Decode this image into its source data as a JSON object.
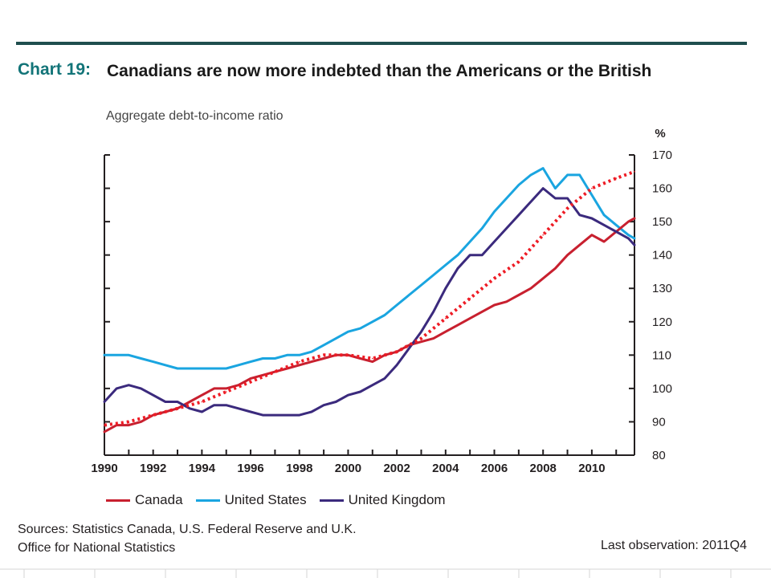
{
  "header": {
    "chart_number": "Chart 19:",
    "title": "Canadians are now more indebted than the Americans or the British",
    "subtitle": "Aggregate debt-to-income ratio"
  },
  "footer": {
    "sources": "Sources: Statistics Canada, U.S. Federal Reserve and U.K. Office for National Statistics",
    "last_observation": "Last observation: 2011Q4"
  },
  "colors": {
    "canada": "#c8202f",
    "united_states": "#1aa5e0",
    "united_kingdom": "#3b2a7d",
    "trend": "#ee1c25",
    "accent": "#127478"
  },
  "chart_data": {
    "type": "line",
    "title": "Canadians are now more indebted than the Americans or the British",
    "subtitle": "Aggregate debt-to-income ratio",
    "ylabel": "%",
    "xlabel": "",
    "xlim": [
      1990,
      2011.75
    ],
    "ylim": [
      80,
      170
    ],
    "yticks": [
      80,
      90,
      100,
      110,
      120,
      130,
      140,
      150,
      160,
      170
    ],
    "xticks": [
      1990,
      1992,
      1994,
      1996,
      1998,
      2000,
      2002,
      2004,
      2006,
      2008,
      2010
    ],
    "legend": [
      "Canada",
      "United States",
      "United Kingdom"
    ],
    "series": [
      {
        "name": "Canada",
        "x": [
          1990,
          1990.5,
          1991,
          1991.5,
          1992,
          1992.5,
          1993,
          1993.5,
          1994,
          1994.5,
          1995,
          1995.5,
          1996,
          1996.5,
          1997,
          1997.5,
          1998,
          1998.5,
          1999,
          1999.5,
          2000,
          2000.5,
          2001,
          2001.5,
          2002,
          2002.5,
          2003,
          2003.5,
          2004,
          2004.5,
          2005,
          2005.5,
          2006,
          2006.5,
          2007,
          2007.5,
          2008,
          2008.5,
          2009,
          2009.5,
          2010,
          2010.5,
          2011,
          2011.5,
          2011.75
        ],
        "values": [
          87,
          89,
          89,
          90,
          92,
          93,
          94,
          96,
          98,
          100,
          100,
          101,
          103,
          104,
          105,
          106,
          107,
          108,
          109,
          110,
          110,
          109,
          108,
          110,
          111,
          113,
          114,
          115,
          117,
          119,
          121,
          123,
          125,
          126,
          128,
          130,
          133,
          136,
          140,
          143,
          146,
          144,
          147,
          150,
          151
        ]
      },
      {
        "name": "United States",
        "x": [
          1990,
          1990.5,
          1991,
          1991.5,
          1992,
          1992.5,
          1993,
          1993.5,
          1994,
          1994.5,
          1995,
          1995.5,
          1996,
          1996.5,
          1997,
          1997.5,
          1998,
          1998.5,
          1999,
          1999.5,
          2000,
          2000.5,
          2001,
          2001.5,
          2002,
          2002.5,
          2003,
          2003.5,
          2004,
          2004.5,
          2005,
          2005.5,
          2006,
          2006.5,
          2007,
          2007.5,
          2008,
          2008.5,
          2009,
          2009.5,
          2010,
          2010.5,
          2011,
          2011.5,
          2011.75
        ],
        "values": [
          110,
          110,
          110,
          109,
          108,
          107,
          106,
          106,
          106,
          106,
          106,
          107,
          108,
          109,
          109,
          110,
          110,
          111,
          113,
          115,
          117,
          118,
          120,
          122,
          125,
          128,
          131,
          134,
          137,
          140,
          144,
          148,
          153,
          157,
          161,
          164,
          166,
          160,
          164,
          164,
          158,
          152,
          149,
          146,
          145
        ]
      },
      {
        "name": "United Kingdom",
        "x": [
          1990,
          1990.5,
          1991,
          1991.5,
          1992,
          1992.5,
          1993,
          1993.5,
          1994,
          1994.5,
          1995,
          1995.5,
          1996,
          1996.5,
          1997,
          1997.5,
          1998,
          1998.5,
          1999,
          1999.5,
          2000,
          2000.5,
          2001,
          2001.5,
          2002,
          2002.5,
          2003,
          2003.5,
          2004,
          2004.5,
          2005,
          2005.5,
          2006,
          2006.5,
          2007,
          2007.5,
          2008,
          2008.5,
          2009,
          2009.5,
          2010,
          2010.5,
          2011,
          2011.5,
          2011.75
        ],
        "values": [
          96,
          100,
          101,
          100,
          98,
          96,
          96,
          94,
          93,
          95,
          95,
          94,
          93,
          92,
          92,
          92,
          92,
          93,
          95,
          96,
          98,
          99,
          101,
          103,
          107,
          112,
          117,
          123,
          130,
          136,
          140,
          140,
          144,
          148,
          152,
          156,
          160,
          157,
          157,
          152,
          151,
          149,
          147,
          145,
          143
        ]
      },
      {
        "name": "Trend",
        "style": "dotted",
        "x": [
          1990,
          1991,
          1992,
          1993,
          1994,
          1995,
          1996,
          1997,
          1998,
          1999,
          2000,
          2001,
          2002,
          2003,
          2004,
          2005,
          2006,
          2007,
          2008,
          2009,
          2010,
          2011,
          2011.75
        ],
        "values": [
          89,
          90,
          92,
          94,
          96,
          99,
          102,
          105,
          108,
          110,
          110,
          109,
          111,
          115,
          121,
          127,
          133,
          138,
          146,
          154,
          160,
          163,
          165
        ]
      }
    ]
  }
}
